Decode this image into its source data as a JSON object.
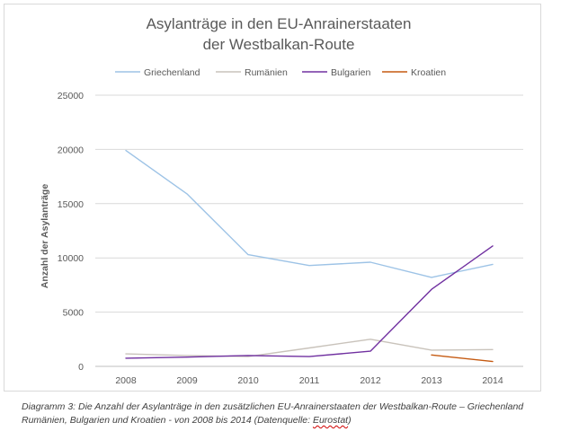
{
  "chart_data": {
    "type": "line",
    "title": "Asylanträge in den EU-Anrainerstaaten",
    "subtitle": "der Westbalkan-Route",
    "xlabel": "",
    "ylabel": "Anzahl der Asylanträge",
    "ylim": [
      0,
      25000
    ],
    "yticks": [
      "0",
      "5000",
      "10000",
      "15000",
      "20000",
      "25000"
    ],
    "categories": [
      "2008",
      "2009",
      "2010",
      "2011",
      "2012",
      "2013",
      "2014"
    ],
    "grid": "horizontal",
    "legend_position": "top",
    "series": [
      {
        "name": "Griechenland",
        "color": "#9dc3e6",
        "values": [
          19900,
          15900,
          10300,
          9300,
          9600,
          8200,
          9400
        ]
      },
      {
        "name": "Rumänien",
        "color": "#c9c3bb",
        "values": [
          1150,
          1000,
          900,
          1700,
          2500,
          1500,
          1550
        ]
      },
      {
        "name": "Bulgarien",
        "color": "#7030a0",
        "values": [
          750,
          850,
          1000,
          900,
          1400,
          7100,
          11100
        ]
      },
      {
        "name": "Kroatien",
        "color": "#c55a11",
        "values": [
          null,
          null,
          null,
          null,
          null,
          1050,
          450
        ]
      }
    ]
  },
  "caption": {
    "text": "Diagramm 3: Die Anzahl der Asylanträge in den zusätzlichen EU-Anrainerstaaten der Westbalkan-Route – Griechenland Rumänien, Bulgarien und Kroatien - von 2008 bis 2014 (Datenquelle: ",
    "source": "Eurostat",
    "suffix": ")"
  }
}
